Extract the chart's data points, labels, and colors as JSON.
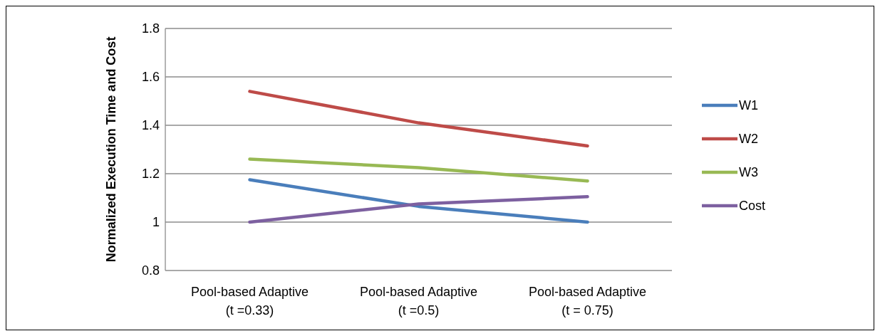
{
  "chart_data": {
    "type": "line",
    "ylabel": "Normalized Execution Time and Cost",
    "categories": [
      "Pool-based Adaptive\n(t =0.33)",
      "Pool-based Adaptive\n(t =0.5)",
      "Pool-based Adaptive\n(t = 0.75)"
    ],
    "series": [
      {
        "name": "W1",
        "color": "#4a7ebb",
        "values": [
          1.175,
          1.065,
          1.0
        ]
      },
      {
        "name": "W2",
        "color": "#be4b48",
        "values": [
          1.54,
          1.41,
          1.315
        ]
      },
      {
        "name": "W3",
        "color": "#98b954",
        "values": [
          1.26,
          1.225,
          1.17
        ]
      },
      {
        "name": "Cost",
        "color": "#7d60a0",
        "values": [
          1.0,
          1.075,
          1.105
        ]
      }
    ],
    "ylim": [
      0.8,
      1.8
    ],
    "yticks": [
      0.8,
      1,
      1.2,
      1.4,
      1.6,
      1.8
    ],
    "grid": "y",
    "legend": "right",
    "marker": "none",
    "line_style": "solid"
  }
}
